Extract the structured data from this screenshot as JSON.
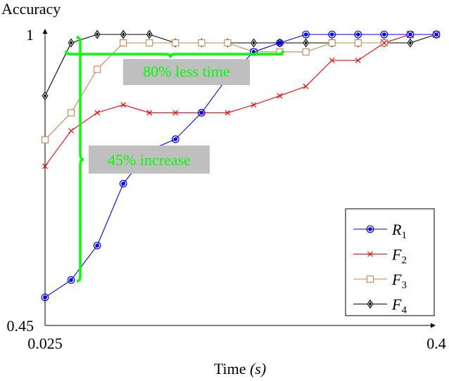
{
  "colors": {
    "R1": "#0000ff",
    "F2": "#ff0000",
    "F3": "#c8844a",
    "F4": "#000000",
    "annotation": "#00ff00",
    "annotation_box": "#bfbfbf"
  },
  "chart_data": {
    "type": "line",
    "ylabel": "Accuracy",
    "xlabel_main": "Time",
    "xlabel_unit": "(s)",
    "xlim": [
      0.025,
      0.4
    ],
    "ylim": [
      0.45,
      1
    ],
    "x_ticks": [
      {
        "v": 0.025,
        "label": "0.025"
      },
      {
        "v": 0.4,
        "label": "0.4"
      }
    ],
    "y_ticks": [
      {
        "v": 0.45,
        "label": "0.45"
      },
      {
        "v": 1,
        "label": "1"
      }
    ],
    "legend_position": "bottom-right",
    "grid": false,
    "x": [
      0.025,
      0.05,
      0.075,
      0.1,
      0.125,
      0.15,
      0.175,
      0.2,
      0.225,
      0.25,
      0.275,
      0.3,
      0.325,
      0.35,
      0.375,
      0.4
    ],
    "series": [
      {
        "key": "R1",
        "name": "R",
        "sub": "1",
        "marker": "circle",
        "values": [
          0.503,
          0.536,
          0.601,
          0.718,
          0.781,
          0.802,
          0.852,
          0.919,
          0.967,
          0.984,
          1.0,
          1.0,
          1.0,
          1.0,
          1.0,
          1.0
        ]
      },
      {
        "key": "F2",
        "name": "F",
        "sub": "2",
        "marker": "x",
        "values": [
          0.751,
          0.818,
          0.852,
          0.867,
          0.852,
          0.852,
          0.852,
          0.852,
          0.867,
          0.884,
          0.902,
          0.951,
          0.951,
          0.984,
          1.0,
          1.0
        ]
      },
      {
        "key": "F3",
        "name": "F",
        "sub": "3",
        "marker": "square",
        "values": [
          0.801,
          0.852,
          0.934,
          0.984,
          0.984,
          0.984,
          0.984,
          0.984,
          0.967,
          0.967,
          0.967,
          0.984,
          0.984,
          0.984,
          1.0,
          1.0
        ]
      },
      {
        "key": "F4",
        "name": "F",
        "sub": "4",
        "marker": "diamond",
        "values": [
          0.884,
          0.984,
          1.0,
          1.0,
          1.0,
          0.984,
          0.984,
          0.984,
          0.984,
          0.984,
          0.984,
          0.984,
          0.984,
          0.984,
          0.984,
          1.0
        ]
      }
    ],
    "annotations": [
      {
        "key": "time",
        "text": "80% less time"
      },
      {
        "key": "acc",
        "text": "45% increase"
      }
    ]
  }
}
